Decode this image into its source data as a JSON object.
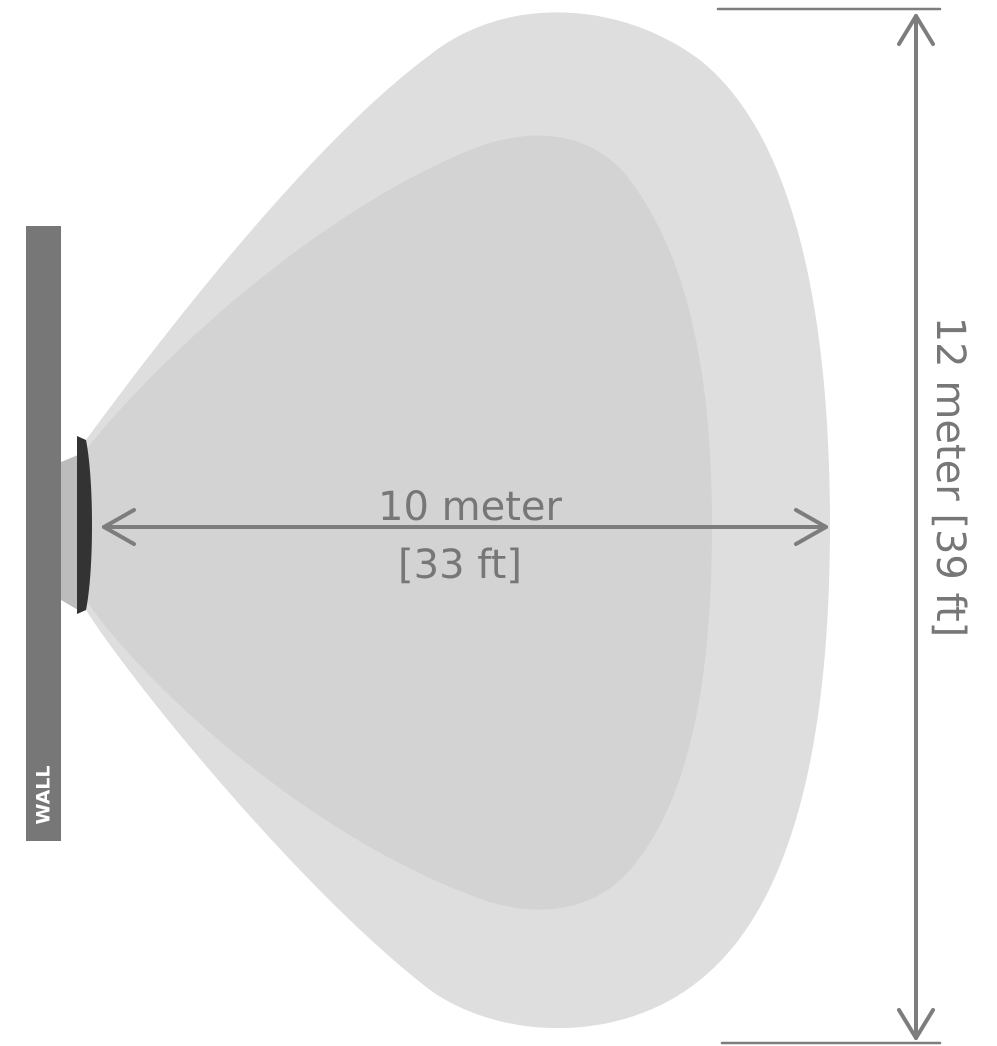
{
  "wall": {
    "label": "WALL"
  },
  "coverage": {
    "depth_line1": "10 meter",
    "depth_line2": "[33 ft]",
    "width_label": "12 meter [39 ft]"
  },
  "colors": {
    "outer_zone": "#dedede",
    "inner_zone": "#d3d3d3",
    "wall": "#777777",
    "dimension_lines": "#7d7d7d",
    "sensor": "#333333",
    "dimension_text": "#777777"
  }
}
